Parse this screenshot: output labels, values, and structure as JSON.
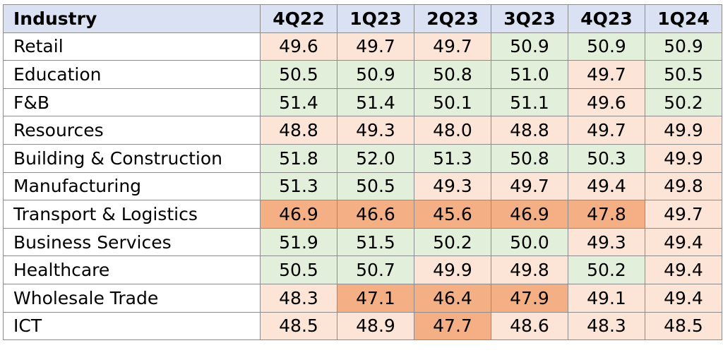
{
  "chart_data": {
    "type": "table",
    "header": {
      "industry": "Industry",
      "quarters": [
        "4Q22",
        "1Q23",
        "2Q23",
        "3Q23",
        "4Q23",
        "1Q24"
      ]
    },
    "rows": [
      {
        "industry": "Retail",
        "values": [
          "49.6",
          "49.7",
          "49.7",
          "50.9",
          "50.9",
          "50.9"
        ]
      },
      {
        "industry": "Education",
        "values": [
          "50.5",
          "50.9",
          "50.8",
          "51.0",
          "49.7",
          "50.5"
        ]
      },
      {
        "industry": "F&B",
        "values": [
          "51.4",
          "51.4",
          "50.1",
          "51.1",
          "49.6",
          "50.2"
        ]
      },
      {
        "industry": "Resources",
        "values": [
          "48.8",
          "49.3",
          "48.0",
          "48.8",
          "49.7",
          "49.9"
        ]
      },
      {
        "industry": "Building & Construction",
        "values": [
          "51.8",
          "52.0",
          "51.3",
          "50.8",
          "50.3",
          "49.9"
        ]
      },
      {
        "industry": "Manufacturing",
        "values": [
          "51.3",
          "50.5",
          "49.3",
          "49.7",
          "49.4",
          "49.8"
        ]
      },
      {
        "industry": "Transport & Logistics",
        "values": [
          "46.9",
          "46.6",
          "45.6",
          "46.9",
          "47.8",
          "49.7"
        ]
      },
      {
        "industry": "Business Services",
        "values": [
          "51.9",
          "51.5",
          "50.2",
          "50.0",
          "49.3",
          "49.4"
        ]
      },
      {
        "industry": "Healthcare",
        "values": [
          "50.5",
          "50.7",
          "49.9",
          "49.8",
          "50.2",
          "49.4"
        ]
      },
      {
        "industry": "Wholesale Trade",
        "values": [
          "48.3",
          "47.1",
          "46.4",
          "47.9",
          "49.1",
          "49.4"
        ]
      },
      {
        "industry": "ICT",
        "values": [
          "48.5",
          "48.9",
          "47.7",
          "48.6",
          "48.3",
          "48.5"
        ]
      }
    ]
  },
  "colors": {
    "header_bg": "#d9e1f2",
    "expansion_bg": "#e2efda",
    "mild_contraction_bg": "#fce4d6",
    "strong_contraction_bg": "#f4b084",
    "border": "#8c8c8c"
  }
}
